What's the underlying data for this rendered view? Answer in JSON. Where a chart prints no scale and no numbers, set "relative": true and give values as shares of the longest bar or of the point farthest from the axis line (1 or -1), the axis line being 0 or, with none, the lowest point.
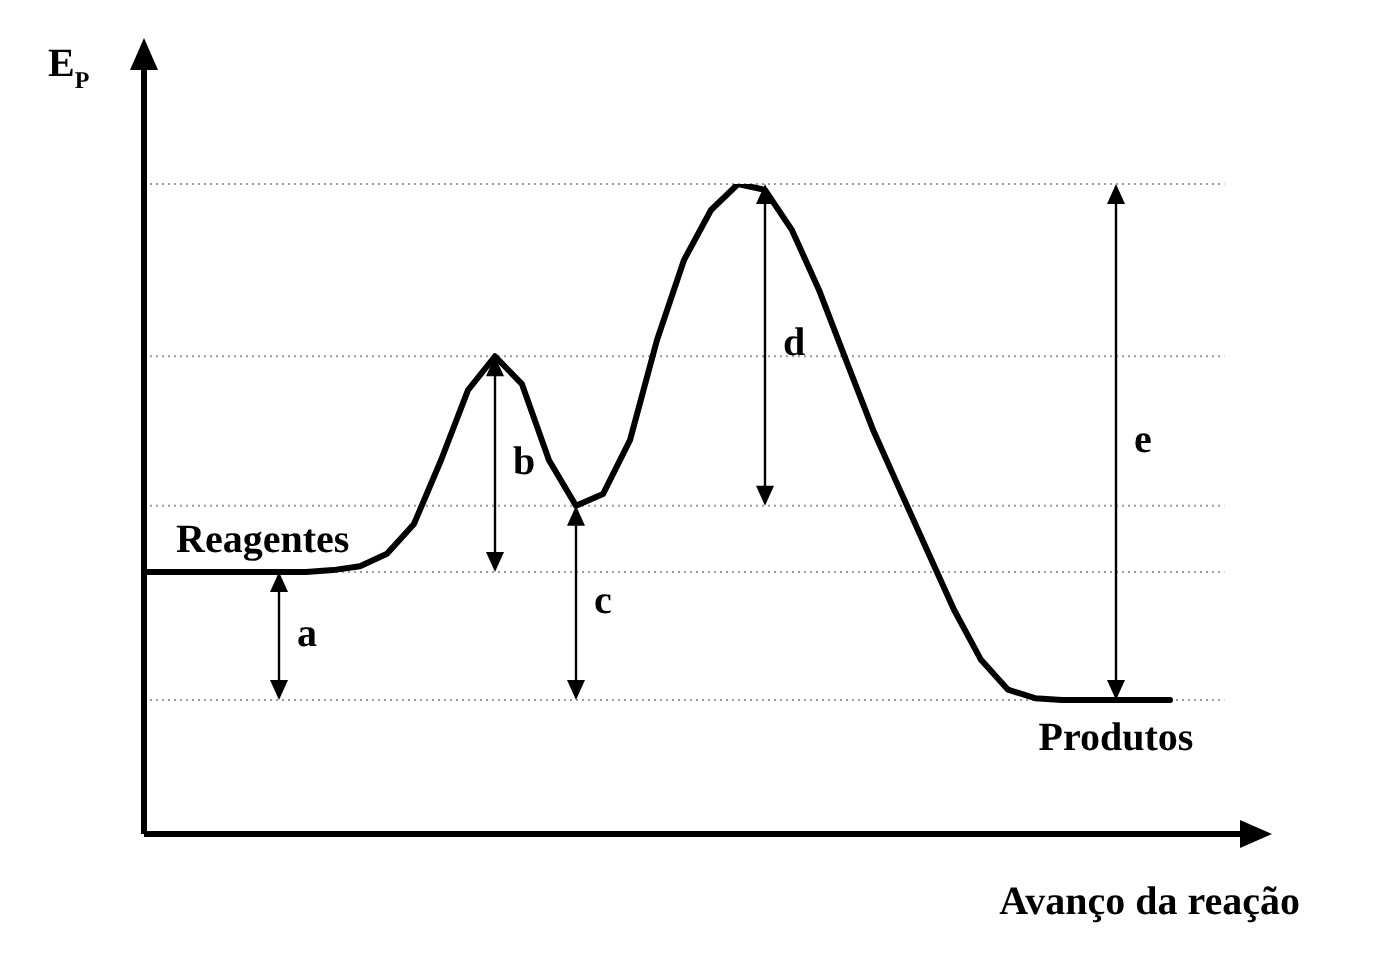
{
  "chart_data": {
    "type": "line",
    "relative": true,
    "xlabel": "Avanço da reação",
    "ylabel": "E$_{P}$",
    "categories": [
      null,
      null,
      null,
      null,
      null,
      null,
      null,
      null,
      null,
      null,
      null,
      null,
      null,
      null,
      null,
      null,
      null,
      null,
      null,
      null,
      null,
      null,
      null,
      null,
      null,
      null,
      null,
      null,
      null,
      null,
      null,
      null,
      null,
      null,
      null,
      null,
      null,
      null,
      null
    ],
    "series": [
      {
        "color": "#000000",
        "values": [
          0.403,
          0.403,
          0.403,
          0.403,
          0.403,
          0.403,
          0.403,
          0.406,
          0.412,
          0.431,
          0.477,
          0.575,
          0.683,
          0.735,
          0.692,
          0.575,
          0.505,
          0.523,
          0.606,
          0.76,
          0.883,
          0.96,
          1,
          0.991,
          0.929,
          0.837,
          0.729,
          0.622,
          0.529,
          0.437,
          0.345,
          0.268,
          0.222,
          0.209,
          0.206,
          0.206,
          0.206,
          0.206,
          0.206
        ]
      }
    ],
    "ref_lines": [
      {
        "axis": "y",
        "value": 1,
        "color": "#999999",
        "line_style": "dotted"
      },
      {
        "axis": "y",
        "value": 0.735,
        "color": "#999999",
        "line_style": "dotted"
      },
      {
        "axis": "y",
        "value": 0.505,
        "color": "#999999",
        "line_style": "dotted"
      },
      {
        "axis": "y",
        "value": 0.403,
        "color": "#999999",
        "line_style": "dotted"
      },
      {
        "axis": "y",
        "value": 0.206,
        "color": "#999999",
        "line_style": "dotted"
      }
    ],
    "annotations": [
      {
        "text": "Reagentes",
        "y": 0.403
      },
      {
        "text": "Produtos",
        "y": 0.206
      },
      "a",
      "b",
      "c",
      "d",
      "e"
    ],
    "legend": false,
    "tick_labels": false,
    "marker": "none",
    "line_style": "solid"
  }
}
